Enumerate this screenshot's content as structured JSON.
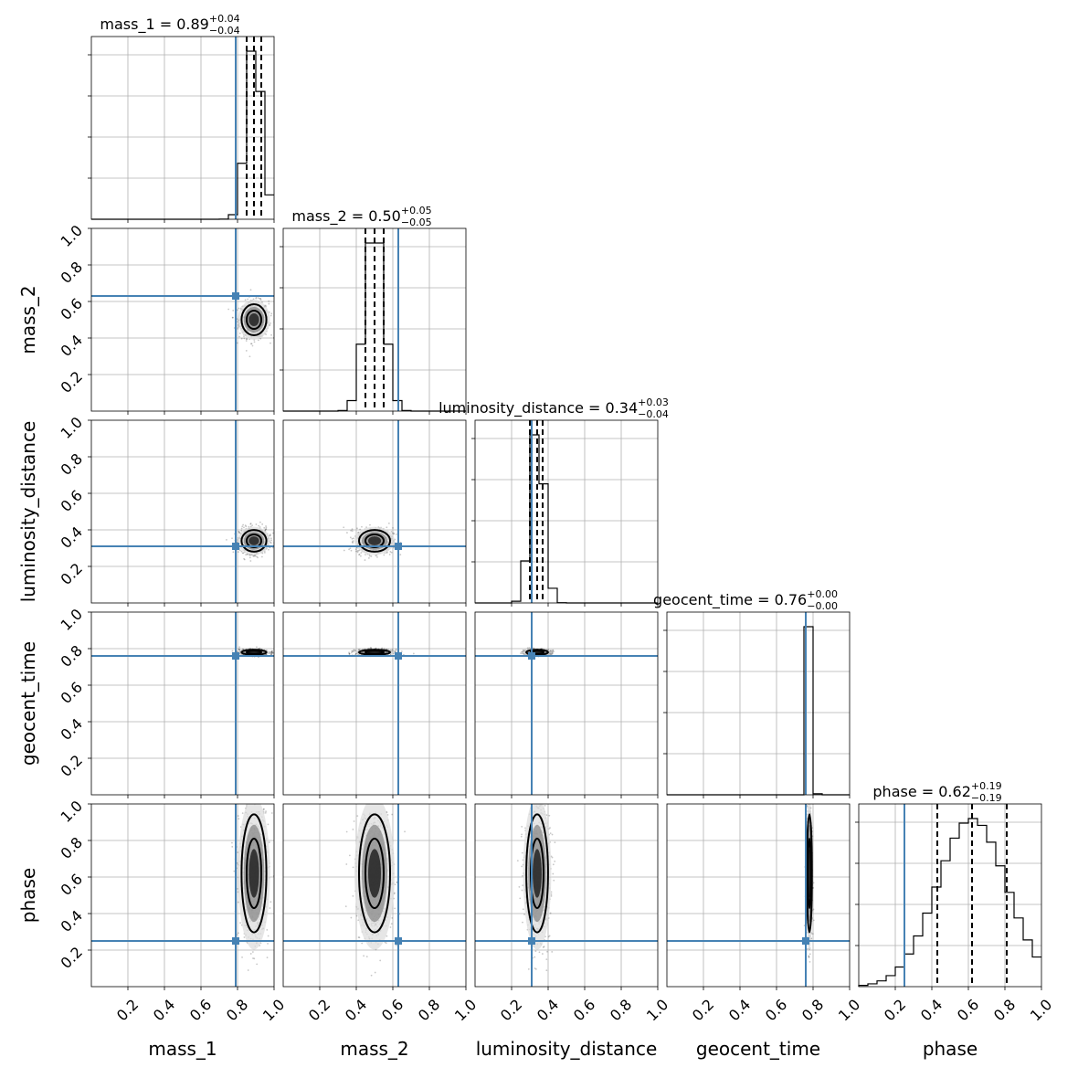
{
  "chart_data": {
    "type": "scatter",
    "subtype": "corner-plot",
    "parameters": [
      "mass_1",
      "mass_2",
      "luminosity_distance",
      "geocent_time",
      "phase"
    ],
    "axis_range": [
      0,
      1
    ],
    "tick_values": [
      0.2,
      0.4,
      0.6,
      0.8,
      1.0
    ],
    "tick_labels": [
      "0.2",
      "0.4",
      "0.6",
      "0.8",
      "1.0"
    ],
    "grid": true,
    "truth_color": "#4682b4",
    "truths": {
      "mass_1": 0.79,
      "mass_2": 0.63,
      "luminosity_distance": 0.31,
      "geocent_time": 0.76,
      "phase": 0.25
    },
    "titles": [
      {
        "param": "mass_1",
        "label": "mass_1 = 0.89",
        "upper": "+0.04",
        "lower": "−0.04",
        "median": 0.89,
        "err_plus": 0.04,
        "err_minus": 0.04
      },
      {
        "param": "mass_2",
        "label": "mass_2 = 0.50",
        "upper": "+0.05",
        "lower": "−0.05",
        "median": 0.5,
        "err_plus": 0.05,
        "err_minus": 0.05
      },
      {
        "param": "luminosity_distance",
        "label": "luminosity_distance = 0.34",
        "upper": "+0.03",
        "lower": "−0.04",
        "median": 0.34,
        "err_plus": 0.03,
        "err_minus": 0.04
      },
      {
        "param": "geocent_time",
        "label": "geocent_time = 0.76",
        "upper": "+0.00",
        "lower": "−0.00",
        "median": 0.76,
        "err_plus": 0.0,
        "err_minus": 0.0
      },
      {
        "param": "phase",
        "label": "phase = 0.62",
        "upper": "+0.19",
        "lower": "−0.19",
        "median": 0.62,
        "err_plus": 0.19,
        "err_minus": 0.19
      }
    ],
    "posterior": {
      "mass_1": {
        "mean": 0.89,
        "sd": 0.04
      },
      "mass_2": {
        "mean": 0.5,
        "sd": 0.05
      },
      "luminosity_distance": {
        "mean": 0.34,
        "sd": 0.035
      },
      "geocent_time": {
        "mean": 0.78,
        "sd": 0.008
      },
      "phase": {
        "mean": 0.62,
        "sd": 0.19
      }
    }
  }
}
